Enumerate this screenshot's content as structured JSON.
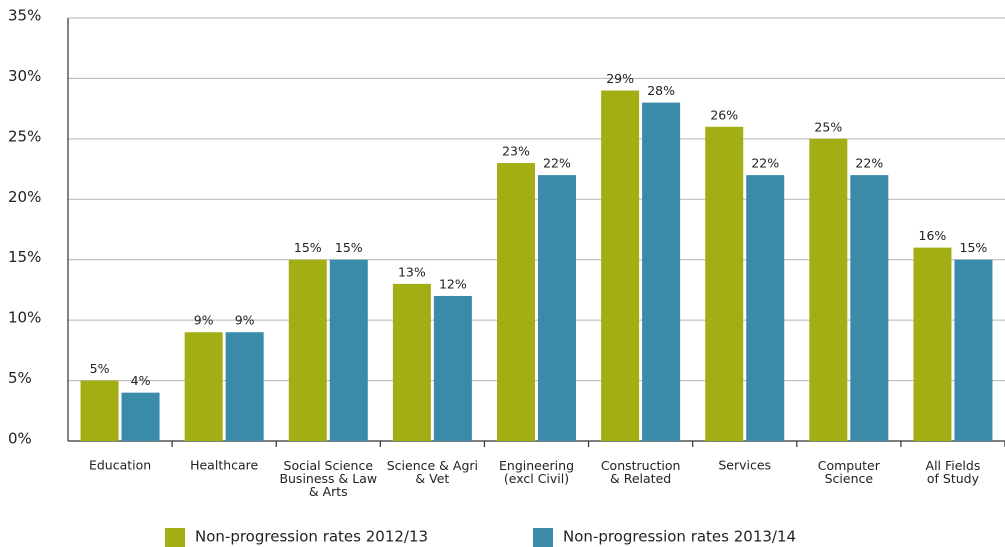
{
  "chart_data": {
    "type": "bar",
    "categories": [
      "Education",
      "Healthcare",
      "Social Science\nBusiness & Law\n& Arts",
      "Science & Agri\n& Vet",
      "Engineering\n(excl Civil)",
      "Construction\n& Related",
      "Services",
      "Computer\nScience",
      "All Fields\nof Study"
    ],
    "series": [
      {
        "name": "Non-progression rates 2012/13",
        "color": "#a3ad14",
        "values": [
          5,
          9,
          15,
          13,
          23,
          29,
          26,
          25,
          16
        ],
        "value_labels": [
          "5%",
          "9%",
          "15%",
          "13%",
          "23%",
          "29%",
          "26%",
          "25%",
          "16%"
        ]
      },
      {
        "name": "Non-progression rates 2013/14",
        "color": "#3a8aaa",
        "values": [
          4,
          9,
          15,
          12,
          22,
          28,
          22,
          22,
          15
        ],
        "value_labels": [
          "4%",
          "9%",
          "15%",
          "12%",
          "22%",
          "28%",
          "22%",
          "22%",
          "15%"
        ]
      }
    ],
    "ylim": [
      0,
      35
    ],
    "yticks": [
      {
        "value": 0,
        "label": "0%"
      },
      {
        "value": 5,
        "label": "5%"
      },
      {
        "value": 10,
        "label": "10%"
      },
      {
        "value": 15,
        "label": "15%"
      },
      {
        "value": 20,
        "label": "20%"
      },
      {
        "value": 25,
        "label": "25%"
      },
      {
        "value": 30,
        "label": "30%"
      },
      {
        "value": 35,
        "label": "35%"
      }
    ],
    "grid": true,
    "legend": "bottom"
  }
}
